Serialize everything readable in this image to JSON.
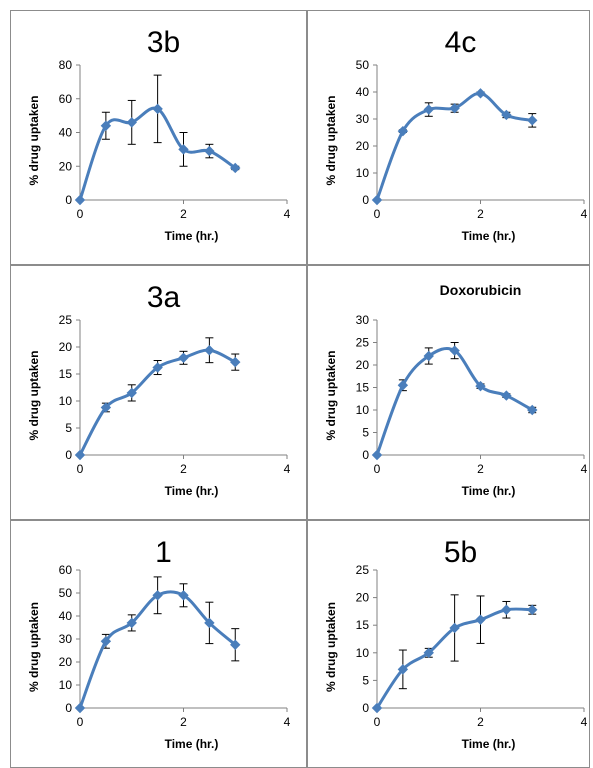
{
  "chart_data": [
    {
      "type": "line",
      "title": "3b",
      "xlabel": "Time (hr.)",
      "ylabel": "% drug uptaken",
      "xlim": [
        0,
        4
      ],
      "ylim": [
        0,
        80
      ],
      "xticks": [
        "0",
        "2",
        "4"
      ],
      "yticks": [
        "0",
        "20",
        "40",
        "60",
        "80"
      ],
      "series": [
        {
          "x": [
            0,
            0.5,
            1,
            1.5,
            2,
            2.5,
            3
          ],
          "y": [
            0,
            44,
            46,
            54,
            30,
            29,
            19
          ],
          "err": [
            0,
            8,
            13,
            20,
            10,
            4,
            1
          ]
        }
      ]
    },
    {
      "type": "line",
      "title": "4c",
      "xlabel": "Time (hr.)",
      "ylabel": "% drug uptaken",
      "xlim": [
        0,
        4
      ],
      "ylim": [
        0,
        50
      ],
      "xticks": [
        "0",
        "2",
        "4"
      ],
      "yticks": [
        "0",
        "10",
        "20",
        "30",
        "40",
        "50"
      ],
      "series": [
        {
          "x": [
            0,
            0.5,
            1,
            1.5,
            2,
            2.5,
            3
          ],
          "y": [
            0,
            25.5,
            33.5,
            34,
            39.5,
            31.5,
            29.5
          ],
          "err": [
            0,
            0.5,
            2.5,
            1.5,
            0.5,
            1,
            2.5
          ]
        }
      ]
    },
    {
      "type": "line",
      "title": "3a",
      "xlabel": "Time (hr.)",
      "ylabel": "% drug uptaken",
      "xlim": [
        0,
        4
      ],
      "ylim": [
        0,
        25
      ],
      "xticks": [
        "0",
        "2",
        "4"
      ],
      "yticks": [
        "0",
        "5",
        "10",
        "15",
        "20",
        "25"
      ],
      "series": [
        {
          "x": [
            0,
            0.5,
            1,
            1.5,
            2,
            2.5,
            3
          ],
          "y": [
            0,
            8.8,
            11.5,
            16.2,
            18,
            19.4,
            17.2
          ],
          "err": [
            0,
            0.8,
            1.5,
            1.3,
            1.2,
            2.3,
            1.5
          ]
        }
      ]
    },
    {
      "type": "line",
      "title": "Doxorubicin",
      "xlabel": "Time (hr.)",
      "ylabel": "% drug uptaken",
      "xlim": [
        0,
        4
      ],
      "ylim": [
        0,
        30
      ],
      "xticks": [
        "0",
        "2",
        "4"
      ],
      "yticks": [
        "0",
        "5",
        "10",
        "15",
        "20",
        "25",
        "30"
      ],
      "series": [
        {
          "x": [
            0,
            0.5,
            1,
            1.5,
            2,
            2.5,
            3
          ],
          "y": [
            0,
            15.5,
            22,
            23.2,
            15.3,
            13.2,
            10
          ],
          "err": [
            0,
            1.2,
            1.8,
            1.8,
            0.5,
            0.4,
            0.6
          ]
        }
      ]
    },
    {
      "type": "line",
      "title": "1",
      "xlabel": "Time (hr.)",
      "ylabel": "% drug uptaken",
      "xlim": [
        0,
        4
      ],
      "ylim": [
        0,
        60
      ],
      "xticks": [
        "0",
        "2",
        "4"
      ],
      "yticks": [
        "0",
        "10",
        "20",
        "30",
        "40",
        "50",
        "60"
      ],
      "series": [
        {
          "x": [
            0,
            0.5,
            1,
            1.5,
            2,
            2.5,
            3
          ],
          "y": [
            0,
            29,
            37,
            49,
            49,
            37,
            27.5
          ],
          "err": [
            0,
            3,
            3.5,
            8,
            5,
            9,
            7
          ]
        }
      ]
    },
    {
      "type": "line",
      "title": "5b",
      "xlabel": "Time (hr.)",
      "ylabel": "% drug uptaken",
      "xlim": [
        0,
        4
      ],
      "ylim": [
        0,
        25
      ],
      "xticks": [
        "0",
        "2",
        "4"
      ],
      "yticks": [
        "0",
        "5",
        "10",
        "15",
        "20",
        "25"
      ],
      "series": [
        {
          "x": [
            0,
            0.5,
            1,
            1.5,
            2,
            2.5,
            3
          ],
          "y": [
            0,
            7,
            10,
            14.5,
            16,
            17.8,
            17.8
          ],
          "err": [
            0,
            3.5,
            0.8,
            6,
            4.3,
            1.5,
            0.8
          ]
        }
      ]
    }
  ],
  "style": {
    "line_color": "#4a7ebb",
    "marker_color": "#4a7ebb",
    "axis_color": "#808080",
    "border_color": "#8c8c8c",
    "error_bar_color": "#000000"
  }
}
